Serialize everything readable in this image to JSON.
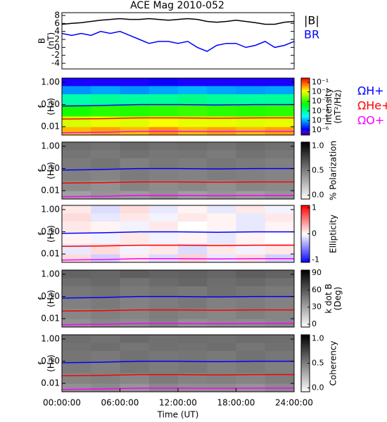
{
  "chart_data": [
    {
      "type": "line",
      "title": "ACE Mag 2010-052",
      "ylabel": [
        "B",
        "(nT)"
      ],
      "x": [
        0,
        1,
        2,
        3,
        4,
        5,
        6,
        7,
        8,
        9,
        10,
        11,
        12,
        13,
        14,
        15,
        16,
        17,
        18,
        19,
        20,
        21,
        22,
        23,
        24
      ],
      "xlim": [
        0,
        24
      ],
      "ylim": [
        -5.4,
        8.7
      ],
      "yticks": [
        8,
        6,
        4,
        2,
        0,
        -2,
        -4
      ],
      "series": [
        {
          "name": "|B|",
          "color": "#000000",
          "values": [
            5.8,
            6.0,
            6.2,
            6.5,
            6.8,
            7.0,
            7.2,
            7.0,
            7.0,
            7.2,
            7.0,
            6.8,
            7.0,
            7.2,
            7.0,
            6.5,
            6.3,
            6.5,
            6.8,
            6.5,
            6.2,
            5.8,
            5.8,
            6.3,
            6.5
          ]
        },
        {
          "name": "BR",
          "color": "#0000ff",
          "values": [
            3.5,
            3.0,
            3.5,
            3.0,
            4.0,
            3.5,
            4.0,
            3.0,
            2.0,
            1.0,
            1.5,
            1.5,
            1.0,
            1.5,
            0,
            -1.0,
            0.5,
            1.0,
            1.0,
            0,
            0.5,
            1.5,
            0,
            0.5,
            1.5
          ]
        }
      ]
    },
    {
      "type": "heatmap",
      "ylabel": [
        "f",
        "(Hz)"
      ],
      "log_y": true,
      "xlim": [
        0,
        24
      ],
      "ylim": [
        0.0042,
        1.55
      ],
      "yticks": [
        {
          "value": 1,
          "label": "1.00"
        },
        {
          "value": 0.1,
          "label": "0.10"
        },
        0.01
      ],
      "xbins": [
        0,
        3,
        6,
        9,
        12,
        15,
        18,
        21,
        24
      ],
      "fbins": [
        0.0042,
        0.01,
        0.03,
        0.1,
        0.3,
        0.7,
        1.55
      ],
      "z": [
        [
          0.03,
          0.04,
          0.03,
          0.05,
          0.03,
          0.04,
          0.03,
          0.04
        ],
        [
          0.008,
          0.01,
          0.009,
          0.012,
          0.01,
          0.01,
          0.009,
          0.01
        ],
        [
          0.0008,
          0.001,
          0.0009,
          0.001,
          0.0012,
          0.001,
          0.0009,
          0.001
        ],
        [
          8e-05,
          0.0001,
          9e-05,
          0.0001,
          0.00012,
          0.0001,
          9e-05,
          0.0001
        ],
        [
          8e-06,
          1e-05,
          8e-06,
          1e-05,
          1.2e-05,
          1e-05,
          9e-06,
          1e-05
        ],
        [
          1e-06,
          1e-06,
          1e-06,
          1.2e-06,
          1e-06,
          1e-06,
          1e-06,
          1e-06
        ]
      ],
      "colormap": "rainbow",
      "log_color": true,
      "clim": [
        3e-07,
        0.28
      ],
      "cticks": [
        {
          "value": 0.1,
          "label": "10⁻¹"
        },
        {
          "value": 0.01,
          "label": "10⁻²"
        },
        {
          "value": 0.001,
          "label": "10⁻³"
        },
        {
          "value": 0.0001,
          "label": "10⁻⁴"
        },
        {
          "value": 1e-05,
          "label": "10⁻⁵"
        },
        {
          "value": 1e-06,
          "label": "10⁻⁶"
        }
      ],
      "clabel": [
        "Intensity",
        "(nT²/Hz)"
      ],
      "line_x": [
        0,
        4,
        8,
        12,
        16,
        20,
        24
      ],
      "series": [
        {
          "name": "ΩH+",
          "color": "#0000ff",
          "values": [
            0.085,
            0.09,
            0.1,
            0.1,
            0.095,
            0.1,
            0.1
          ]
        },
        {
          "name": "ΩHe+",
          "color": "#ff0000",
          "values": [
            0.022,
            0.023,
            0.025,
            0.025,
            0.024,
            0.025,
            0.025
          ]
        },
        {
          "name": "ΩO+",
          "color": "#ff00ff",
          "values": [
            0.0053,
            0.0056,
            0.0062,
            0.0062,
            0.006,
            0.0062,
            0.0062
          ]
        }
      ]
    },
    {
      "type": "heatmap",
      "ylabel": [
        "f",
        "(Hz)"
      ],
      "log_y": true,
      "xlim": [
        0,
        24
      ],
      "ylim": [
        0.0042,
        1.55
      ],
      "yticks": [
        {
          "value": 1,
          "label": "1.00"
        },
        {
          "value": 0.1,
          "label": "0.10"
        },
        0.01
      ],
      "xbins": [
        0,
        3,
        6,
        9,
        12,
        15,
        18,
        21,
        24
      ],
      "fbins": [
        0.0042,
        0.01,
        0.03,
        0.1,
        0.3,
        0.7,
        1.55
      ],
      "z": [
        [
          0.35,
          0.4,
          0.38,
          0.42,
          0.36,
          0.4,
          0.37,
          0.4
        ],
        [
          0.45,
          0.42,
          0.48,
          0.44,
          0.46,
          0.43,
          0.47,
          0.45
        ],
        [
          0.5,
          0.48,
          0.52,
          0.5,
          0.49,
          0.51,
          0.5,
          0.48
        ],
        [
          0.52,
          0.55,
          0.5,
          0.53,
          0.51,
          0.54,
          0.52,
          0.5
        ],
        [
          0.55,
          0.53,
          0.56,
          0.54,
          0.55,
          0.52,
          0.56,
          0.54
        ],
        [
          0.58,
          0.56,
          0.6,
          0.57,
          0.58,
          0.56,
          0.59,
          0.57
        ]
      ],
      "colormap": "gray_r",
      "log_color": false,
      "clim": [
        -0.08,
        1.08
      ],
      "cticks": [
        {
          "value": 1,
          "label": "1.0"
        },
        {
          "value": 0.5,
          "label": "0.5"
        },
        {
          "value": 0,
          "label": "0.0"
        }
      ],
      "clabel": [
        "% Polarization"
      ],
      "line_x": [
        0,
        4,
        8,
        12,
        16,
        20,
        24
      ],
      "series": [
        {
          "color": "#0000ff",
          "values": [
            0.085,
            0.09,
            0.1,
            0.1,
            0.095,
            0.1,
            0.1
          ]
        },
        {
          "color": "#ff0000",
          "values": [
            0.022,
            0.023,
            0.025,
            0.025,
            0.024,
            0.025,
            0.025
          ]
        },
        {
          "color": "#ff00ff",
          "values": [
            0.0053,
            0.0056,
            0.0062,
            0.0062,
            0.006,
            0.0062,
            0.0062
          ]
        }
      ]
    },
    {
      "type": "heatmap",
      "ylabel": [
        "f",
        "(Hz)"
      ],
      "log_y": true,
      "xlim": [
        0,
        24
      ],
      "ylim": [
        0.0042,
        1.55
      ],
      "yticks": [
        {
          "value": 1,
          "label": "1.00"
        },
        {
          "value": 0.1,
          "label": "0.10"
        },
        0.01
      ],
      "xbins": [
        0,
        3,
        6,
        9,
        12,
        15,
        18,
        21,
        24
      ],
      "fbins": [
        0.0042,
        0.01,
        0.03,
        0.1,
        0.3,
        0.7,
        1.55
      ],
      "z": [
        [
          0.15,
          -0.2,
          0.1,
          -0.15,
          0.2,
          -0.1,
          0.15,
          -0.2
        ],
        [
          -0.1,
          0.15,
          -0.05,
          0.1,
          -0.15,
          0.1,
          -0.05,
          0.1
        ],
        [
          0.05,
          -0.05,
          0.1,
          -0.05,
          0.05,
          -0.1,
          0.05,
          0
        ],
        [
          0.1,
          0.05,
          -0.05,
          0.1,
          0,
          0.05,
          -0.1,
          0.05
        ],
        [
          0.15,
          -0.1,
          0.1,
          -0.05,
          0.1,
          0.05,
          -0.1,
          0.1
        ],
        [
          0.1,
          -0.15,
          0.15,
          -0.1,
          0.05,
          -0.1,
          0.1,
          -0.05
        ]
      ],
      "colormap": "bwr",
      "log_color": false,
      "clim": [
        -1.1,
        1.1
      ],
      "cticks": [
        1,
        0,
        -1
      ],
      "clabel": [
        "Ellipticity"
      ],
      "line_x": [
        0,
        4,
        8,
        12,
        16,
        20,
        24
      ],
      "series": [
        {
          "color": "#0000ff",
          "values": [
            0.085,
            0.09,
            0.1,
            0.1,
            0.095,
            0.1,
            0.1
          ]
        },
        {
          "color": "#ff0000",
          "values": [
            0.022,
            0.023,
            0.025,
            0.025,
            0.024,
            0.025,
            0.025
          ]
        },
        {
          "color": "#ff00ff",
          "values": [
            0.0053,
            0.0056,
            0.0062,
            0.0062,
            0.006,
            0.0062,
            0.0062
          ]
        }
      ]
    },
    {
      "type": "heatmap",
      "ylabel": [
        "f",
        "(Hz)"
      ],
      "log_y": true,
      "xlim": [
        0,
        24
      ],
      "ylim": [
        0.0042,
        1.55
      ],
      "yticks": [
        {
          "value": 1,
          "label": "1.00"
        },
        {
          "value": 0.1,
          "label": "0.10"
        },
        0.01
      ],
      "xbins": [
        0,
        3,
        6,
        9,
        12,
        15,
        18,
        21,
        24
      ],
      "fbins": [
        0.0042,
        0.01,
        0.03,
        0.1,
        0.3,
        0.7,
        1.55
      ],
      "z": [
        [
          38,
          42,
          40,
          44,
          39,
          41,
          40,
          42
        ],
        [
          42,
          45,
          43,
          46,
          44,
          42,
          45,
          43
        ],
        [
          45,
          47,
          44,
          46,
          48,
          45,
          46,
          44
        ],
        [
          48,
          50,
          47,
          49,
          48,
          51,
          49,
          47
        ],
        [
          52,
          54,
          50,
          53,
          55,
          52,
          54,
          51
        ],
        [
          56,
          55,
          58,
          56,
          57,
          55,
          58,
          56
        ]
      ],
      "colormap": "gray_r",
      "log_color": false,
      "clim": [
        -5,
        95
      ],
      "cticks": [
        90,
        60,
        30,
        0
      ],
      "clabel": [
        "k dot B",
        "(Deg)"
      ],
      "line_x": [
        0,
        4,
        8,
        12,
        16,
        20,
        24
      ],
      "series": [
        {
          "color": "#0000ff",
          "values": [
            0.085,
            0.09,
            0.1,
            0.1,
            0.095,
            0.1,
            0.1
          ]
        },
        {
          "color": "#ff0000",
          "values": [
            0.022,
            0.023,
            0.025,
            0.025,
            0.024,
            0.025,
            0.025
          ]
        },
        {
          "color": "#ff00ff",
          "values": [
            0.0053,
            0.0056,
            0.0062,
            0.0062,
            0.006,
            0.0062,
            0.0062
          ]
        }
      ]
    },
    {
      "type": "heatmap",
      "ylabel": [
        "f",
        "(Hz)"
      ],
      "log_y": true,
      "xlim": [
        0,
        24
      ],
      "ylim": [
        0.0042,
        1.55
      ],
      "yticks": [
        {
          "value": 1,
          "label": "1.00"
        },
        {
          "value": 0.1,
          "label": "0.10"
        },
        0.01
      ],
      "xticks": [
        {
          "value": 0,
          "label": "00:00:00"
        },
        {
          "value": 6,
          "label": "06:00:00"
        },
        {
          "value": 12,
          "label": "12:00:00"
        },
        {
          "value": 18,
          "label": "18:00:00"
        },
        {
          "value": 24,
          "label": "24:00:00"
        }
      ],
      "xlabel": "Time (UT)",
      "xbins": [
        0,
        3,
        6,
        9,
        12,
        15,
        18,
        21,
        24
      ],
      "fbins": [
        0.0042,
        0.01,
        0.03,
        0.1,
        0.3,
        0.7,
        1.55
      ],
      "z": [
        [
          0.42,
          0.45,
          0.4,
          0.46,
          0.43,
          0.44,
          0.41,
          0.45
        ],
        [
          0.48,
          0.5,
          0.47,
          0.52,
          0.49,
          0.5,
          0.48,
          0.51
        ],
        [
          0.52,
          0.5,
          0.54,
          0.51,
          0.53,
          0.5,
          0.52,
          0.5
        ],
        [
          0.55,
          0.53,
          0.56,
          0.54,
          0.55,
          0.53,
          0.56,
          0.54
        ],
        [
          0.56,
          0.58,
          0.55,
          0.57,
          0.56,
          0.58,
          0.55,
          0.57
        ],
        [
          0.58,
          0.56,
          0.6,
          0.57,
          0.58,
          0.57,
          0.59,
          0.58
        ]
      ],
      "colormap": "gray_r",
      "log_color": false,
      "clim": [
        -0.08,
        1.08
      ],
      "cticks": [
        {
          "value": 1,
          "label": "1.0"
        },
        {
          "value": 0.5,
          "label": "0.5"
        },
        {
          "value": 0,
          "label": "0.0"
        }
      ],
      "clabel": [
        "Coherency"
      ],
      "line_x": [
        0,
        4,
        8,
        12,
        16,
        20,
        24
      ],
      "series": [
        {
          "color": "#0000ff",
          "values": [
            0.085,
            0.09,
            0.1,
            0.1,
            0.095,
            0.1,
            0.1
          ]
        },
        {
          "color": "#ff0000",
          "values": [
            0.022,
            0.023,
            0.025,
            0.025,
            0.024,
            0.025,
            0.025
          ]
        },
        {
          "color": "#ff00ff",
          "values": [
            0.0053,
            0.0056,
            0.0062,
            0.0062,
            0.006,
            0.0062,
            0.0062
          ]
        }
      ]
    }
  ]
}
